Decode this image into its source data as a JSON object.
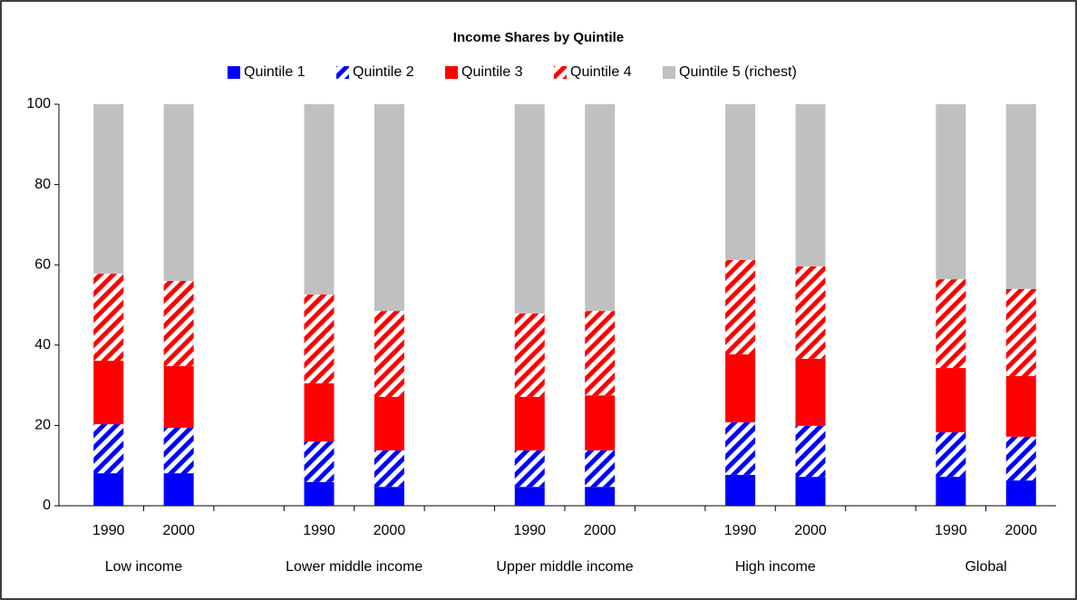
{
  "chart_data": {
    "type": "stacked_bar",
    "title": "Income Shares by Quintile",
    "categories": [
      "1990",
      "2000",
      null,
      "1990",
      "2000",
      null,
      "1990",
      "2000",
      null,
      "1990",
      "2000",
      null,
      "1990",
      "2000"
    ],
    "groups": [
      "Low  income",
      "Lower middle income",
      "Upper middle income",
      "High income",
      "Global"
    ],
    "series": [
      {
        "name": "Quintile 1",
        "color": "#0000ff",
        "hatch": false,
        "values": [
          8.1,
          8.1,
          null,
          5.9,
          4.7,
          null,
          4.7,
          4.7,
          null,
          7.7,
          7.2,
          null,
          7.2,
          6.3
        ]
      },
      {
        "name": "Quintile 2",
        "color": "#0000ff",
        "hatch": true,
        "values": [
          12.2,
          11.3,
          null,
          10.1,
          9.1,
          null,
          9.1,
          9.1,
          null,
          13.1,
          12.7,
          null,
          11.1,
          10.9
        ]
      },
      {
        "name": "Quintile 3",
        "color": "#ff0000",
        "hatch": false,
        "values": [
          15.8,
          15.4,
          null,
          14.5,
          13.3,
          null,
          13.3,
          13.7,
          null,
          16.9,
          16.7,
          null,
          16.0,
          15.1
        ]
      },
      {
        "name": "Quintile 4",
        "color": "#ff0000",
        "hatch": true,
        "values": [
          21.7,
          21.2,
          null,
          22.1,
          21.4,
          null,
          20.8,
          21.0,
          null,
          23.5,
          23.0,
          null,
          22.1,
          21.7
        ]
      },
      {
        "name": "Quintile 5 (richest)",
        "color": "#c0c0c0",
        "hatch": false,
        "values": [
          42.2,
          44.0,
          null,
          47.4,
          51.5,
          null,
          52.1,
          51.5,
          null,
          38.8,
          40.4,
          null,
          43.6,
          46.0
        ]
      }
    ],
    "ylim": [
      0,
      100
    ],
    "yticks": [
      0,
      20,
      40,
      60,
      80,
      100
    ],
    "grid": false,
    "legend": "top"
  }
}
